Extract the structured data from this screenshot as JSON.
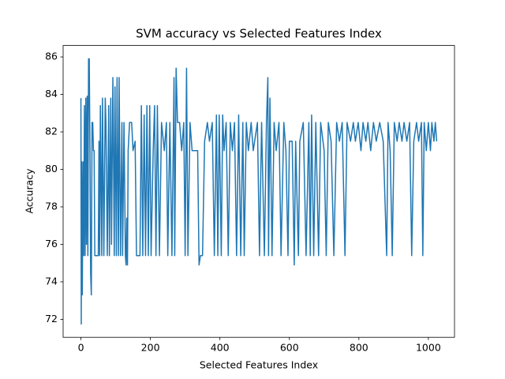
{
  "chart_data": {
    "type": "line",
    "title": "SVM accuracy vs Selected Features Index",
    "xlabel": "Selected Features Index",
    "ylabel": "Accuracy",
    "color": "#1f77b4",
    "xlim": [
      -51.2,
      1075.2
    ],
    "ylim": [
      71.04,
      86.61
    ],
    "xticks": [
      0,
      200,
      400,
      600,
      800,
      1000
    ],
    "yticks": [
      72,
      74,
      76,
      78,
      80,
      82,
      84,
      86
    ],
    "x": [
      0,
      1,
      2,
      4,
      6,
      8,
      10,
      12,
      14,
      16,
      18,
      20,
      22,
      24,
      26,
      28,
      30,
      32,
      34,
      36,
      38,
      40,
      45,
      50,
      52,
      54,
      56,
      60,
      62,
      66,
      70,
      72,
      76,
      80,
      82,
      86,
      88,
      92,
      96,
      98,
      102,
      104,
      108,
      110,
      114,
      118,
      120,
      124,
      128,
      130,
      132,
      134,
      136,
      140,
      146,
      150,
      156,
      160,
      170,
      174,
      178,
      182,
      186,
      190,
      194,
      198,
      202,
      208,
      212,
      216,
      220,
      226,
      232,
      240,
      246,
      250,
      256,
      262,
      268,
      270,
      274,
      278,
      284,
      290,
      296,
      300,
      304,
      308,
      314,
      320,
      330,
      336,
      340,
      344,
      350,
      356,
      364,
      370,
      378,
      384,
      390,
      394,
      398,
      404,
      408,
      412,
      418,
      424,
      430,
      436,
      442,
      448,
      454,
      460,
      466,
      470,
      476,
      482,
      490,
      496,
      500,
      508,
      514,
      520,
      528,
      534,
      538,
      540,
      544,
      550,
      556,
      562,
      570,
      576,
      584,
      590,
      596,
      600,
      608,
      614,
      618,
      626,
      630,
      640,
      648,
      656,
      660,
      664,
      670,
      676,
      684,
      690,
      700,
      706,
      712,
      720,
      728,
      736,
      744,
      752,
      760,
      766,
      776,
      784,
      790,
      798,
      806,
      812,
      820,
      826,
      834,
      842,
      850,
      860,
      870,
      880,
      884,
      890,
      896,
      902,
      910,
      916,
      924,
      930,
      938,
      946,
      952,
      958,
      966,
      972,
      980,
      984,
      988,
      994,
      1000,
      1006,
      1010,
      1016,
      1020,
      1024
    ],
    "values": [
      83.8,
      71.75,
      80.4,
      73.3,
      80.4,
      75.4,
      83.4,
      75.4,
      83.8,
      76,
      83.9,
      75.4,
      85.9,
      85.9,
      81,
      74.4,
      73.3,
      82.5,
      82.5,
      81,
      81,
      75.4,
      75.4,
      75.4,
      81.5,
      75.4,
      83.4,
      75.4,
      83.8,
      75.4,
      83.8,
      82.5,
      75.4,
      83.4,
      75.4,
      83.8,
      76,
      84.9,
      75.4,
      84.4,
      75.4,
      84.9,
      75.4,
      84.9,
      75.4,
      82.5,
      75.4,
      82.5,
      75.4,
      74.9,
      77.4,
      74.9,
      81,
      82.5,
      82.5,
      81,
      81.5,
      75.4,
      75.4,
      83.4,
      75.4,
      82.9,
      75.4,
      83.4,
      75.4,
      83.4,
      75.4,
      81,
      83.4,
      75.4,
      83.4,
      75.4,
      82.5,
      81,
      82.5,
      75.4,
      82.5,
      75.4,
      84.9,
      75.4,
      85.4,
      82.5,
      82.5,
      81,
      82.5,
      75.4,
      85.4,
      75.4,
      82.5,
      81,
      81,
      81,
      74.9,
      75.4,
      75.4,
      81.5,
      82.5,
      81.5,
      82.5,
      75.4,
      82.9,
      75.4,
      82.9,
      75.4,
      82.9,
      81,
      82.5,
      75.4,
      82.5,
      81,
      82.5,
      75.4,
      82.9,
      75.4,
      82.5,
      75.4,
      82.5,
      81,
      82.5,
      81,
      81.5,
      82.5,
      75.4,
      82.5,
      75.4,
      82.5,
      84.9,
      75.4,
      83.8,
      75.4,
      82.5,
      81,
      82.5,
      75.4,
      82.5,
      81,
      75.4,
      81.5,
      81.5,
      74.9,
      81.5,
      75.4,
      81.5,
      82.5,
      75.4,
      82.5,
      75.4,
      82.9,
      75.4,
      82.5,
      75.4,
      82.5,
      81,
      75.4,
      82.5,
      81.5,
      75.4,
      82.5,
      81.5,
      82.5,
      75.4,
      82.5,
      81.5,
      82.5,
      81.5,
      82.5,
      81,
      82.5,
      81.5,
      82.5,
      81,
      82.5,
      81.5,
      82.5,
      81.5,
      75.4,
      82.5,
      81,
      75.4,
      82.5,
      81.5,
      82.5,
      81.5,
      82.5,
      81.5,
      82.5,
      75.4,
      81.5,
      82.5,
      81.5,
      82.5,
      75.4,
      82.5,
      81,
      82.5,
      81,
      82.5,
      81.5,
      82.5,
      81.5
    ]
  }
}
